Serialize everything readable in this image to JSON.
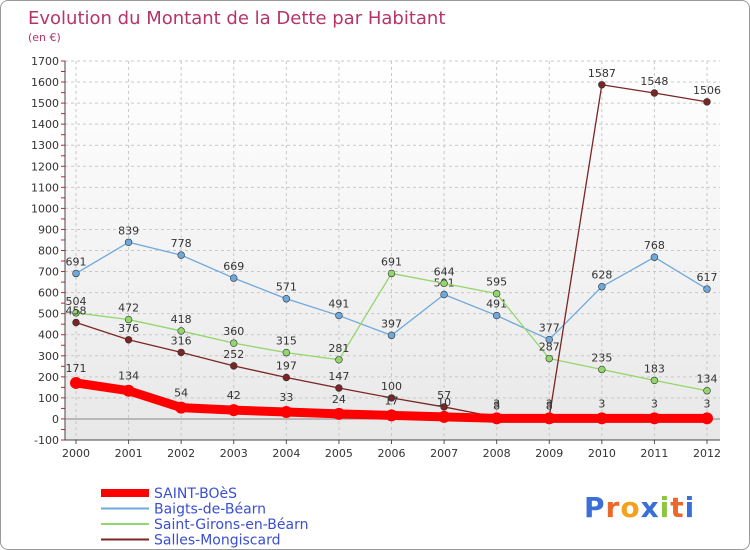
{
  "chart_data": {
    "type": "line",
    "title": "Evolution du Montant de la Dette par Habitant",
    "subtitle": "(en €)",
    "x": [
      "2000",
      "2001",
      "2002",
      "2003",
      "2004",
      "2005",
      "2006",
      "2007",
      "2008",
      "2009",
      "2010",
      "2011",
      "2012"
    ],
    "ylim": [
      -100,
      1700
    ],
    "yticks": [
      -100,
      0,
      100,
      200,
      300,
      400,
      500,
      600,
      700,
      800,
      900,
      1000,
      1100,
      1200,
      1300,
      1400,
      1500,
      1600,
      1700
    ],
    "grid": true,
    "legend": "bottom-left",
    "series": [
      {
        "name": "SAINT-BOèS",
        "color": "#ff0000",
        "values": [
          171,
          134,
          54,
          42,
          33,
          24,
          17,
          10,
          3,
          3,
          3,
          3,
          3
        ]
      },
      {
        "name": "Baigts-de-Béarn",
        "color": "#6fa8dc",
        "values": [
          691,
          839,
          778,
          669,
          571,
          491,
          397,
          591,
          491,
          377,
          628,
          768,
          617
        ]
      },
      {
        "name": "Saint-Girons-en-Béarn",
        "color": "#93d66b",
        "values": [
          504,
          472,
          418,
          360,
          315,
          281,
          691,
          644,
          595,
          287,
          235,
          183,
          134
        ]
      },
      {
        "name": "Salles-Mongiscard",
        "color": "#7b2525",
        "values": [
          458,
          376,
          316,
          252,
          197,
          147,
          100,
          57,
          8,
          8,
          1587,
          1548,
          1506
        ]
      }
    ]
  },
  "logo": {
    "text": "Proxiti"
  }
}
